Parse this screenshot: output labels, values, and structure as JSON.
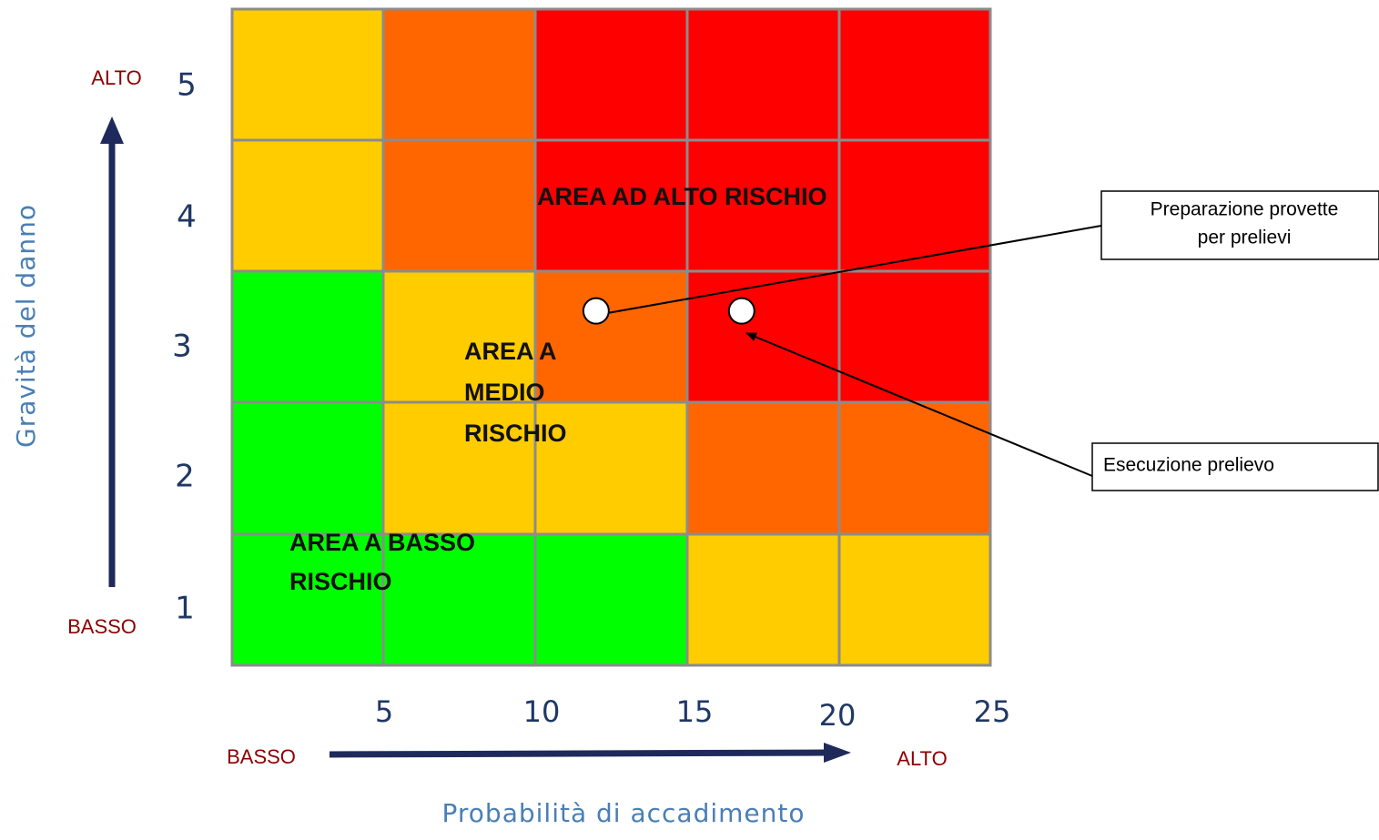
{
  "chart_data": {
    "type": "heatmap",
    "title": "",
    "xlabel": "Probabilità di accadimento",
    "ylabel": "Gravità del danno",
    "x_ticks": [
      "5",
      "10",
      "15",
      "20",
      "25"
    ],
    "y_ticks": [
      "1",
      "2",
      "3",
      "4",
      "5"
    ],
    "x_axis_low": "BASSO",
    "x_axis_high": "ALTO",
    "y_axis_low": "BASSO",
    "y_axis_high": "ALTO",
    "colors": {
      "G": "#00ff00",
      "Y": "#ffcc00",
      "O": "#ff6600",
      "R": "#ff0000"
    },
    "grid_colors_bottom_to_top": [
      [
        "G",
        "G",
        "G",
        "Y",
        "Y"
      ],
      [
        "G",
        "Y",
        "Y",
        "O",
        "O"
      ],
      [
        "G",
        "Y",
        "O",
        "R",
        "R"
      ],
      [
        "Y",
        "O",
        "R",
        "R",
        "R"
      ],
      [
        "Y",
        "O",
        "R",
        "R",
        "R"
      ]
    ],
    "areas": [
      {
        "lines": [
          "AREA AD ALTO RISCHIO"
        ]
      },
      {
        "lines": [
          "AREA A",
          "MEDIO",
          "RISCHIO"
        ]
      },
      {
        "lines": [
          "AREA A BASSO",
          "RISCHIO"
        ]
      }
    ],
    "points": [
      {
        "name": "Preparazione provette per prelievi",
        "x": 12,
        "y": 3.2
      },
      {
        "name": "Esecuzione prelievo",
        "x": 16.8,
        "y": 3.2
      }
    ],
    "callouts": [
      {
        "lines": [
          "Preparazione provette",
          "per prelievi"
        ]
      },
      {
        "lines": [
          "Esecuzione prelievo"
        ]
      }
    ]
  }
}
